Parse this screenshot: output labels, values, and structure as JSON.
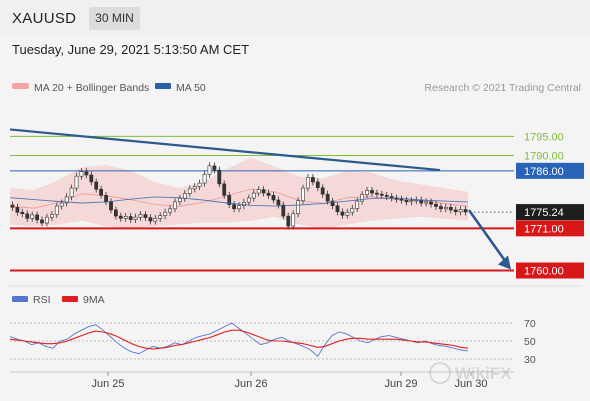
{
  "header": {
    "symbol": "XAUUSD",
    "timeframe": "30 MIN",
    "datetime": "Tuesday, June 29, 2021 5:13:50 AM CET"
  },
  "legend": {
    "ma20_bb_label": "MA 20 + Bollinger Bands",
    "ma50_label": "MA 50",
    "credit": "Research © 2021 Trading Central",
    "colors": {
      "bollinger": "#f5a3a3",
      "ma50": "#2a5fa8"
    }
  },
  "rsi_legend": {
    "rsi_label": "RSI",
    "ma9_label": "9MA",
    "colors": {
      "rsi": "#5577cc",
      "ma9": "#e02020"
    }
  },
  "chart_data": [
    {
      "type": "candlestick",
      "ylim": [
        1757,
        1799
      ],
      "x_tick_labels": [
        "Jun 25",
        "Jun 26",
        "Jun 29",
        "Jun 30"
      ],
      "current_price": {
        "value": 1775.24,
        "label": "1775.24"
      },
      "levels": [
        {
          "value": 1795.0,
          "label": "1795.00",
          "kind": "resistance",
          "color": "#7bbf3a"
        },
        {
          "value": 1790.0,
          "label": "1790.00",
          "kind": "resistance",
          "color": "#7bbf3a"
        },
        {
          "value": 1786.0,
          "label": "1786.00",
          "kind": "pivot",
          "color": "#2a62b8"
        },
        {
          "value": 1771.0,
          "label": "1771.00",
          "kind": "support",
          "color": "#d81818"
        },
        {
          "value": 1760.0,
          "label": "1760.00",
          "kind": "support",
          "color": "#d81818"
        }
      ],
      "closes": [
        1776.5,
        1775.2,
        1774.8,
        1773.6,
        1774.5,
        1773.2,
        1772.4,
        1773.9,
        1774.6,
        1776.8,
        1777.6,
        1779.2,
        1781.5,
        1784.6,
        1785.8,
        1784.9,
        1783.1,
        1781.2,
        1779.6,
        1777.9,
        1775.8,
        1774.2,
        1773.6,
        1774.1,
        1773.3,
        1773.9,
        1774.6,
        1773.8,
        1772.9,
        1773.6,
        1774.3,
        1775.2,
        1776.1,
        1777.9,
        1778.8,
        1780.1,
        1781.3,
        1781.9,
        1782.8,
        1785.1,
        1787.3,
        1786.2,
        1782.6,
        1779.6,
        1777.2,
        1776.1,
        1776.9,
        1777.8,
        1778.9,
        1780.2,
        1781.1,
        1780.2,
        1779.6,
        1778.4,
        1777.1,
        1774.2,
        1771.6,
        1774.8,
        1778.2,
        1781.5,
        1784.3,
        1783.1,
        1781.6,
        1779.9,
        1778.1,
        1776.9,
        1775.3,
        1774.4,
        1775.2,
        1776.2,
        1778.1,
        1779.8,
        1780.9,
        1780.2,
        1779.9,
        1779.6,
        1779.3,
        1778.9,
        1778.6,
        1778.3,
        1777.9,
        1778.2,
        1778.4,
        1777.6,
        1777.9,
        1777.3,
        1776.7,
        1776.1,
        1776.5,
        1775.8,
        1775.3,
        1775.9,
        1775.24
      ],
      "ma50_points": [
        1779.0,
        1778.5,
        1778.0,
        1777.6,
        1777.9,
        1778.6,
        1779.2,
        1779.0,
        1778.4,
        1777.6,
        1777.0,
        1776.8,
        1777.1,
        1777.5,
        1778.1,
        1778.8,
        1778.9,
        1778.4,
        1778.1,
        1777.9
      ],
      "bb_upper": [
        1781.5,
        1781.0,
        1783.5,
        1787.0,
        1787.5,
        1786.0,
        1783.0,
        1781.5,
        1783.0,
        1786.5,
        1789.5,
        1787.0,
        1784.5,
        1784.0,
        1786.0,
        1785.5,
        1783.5,
        1782.5,
        1781.5,
        1780.5
      ],
      "bb_lower": [
        1772.0,
        1771.5,
        1772.0,
        1773.0,
        1771.5,
        1771.0,
        1771.5,
        1772.0,
        1772.5,
        1772.5,
        1773.0,
        1774.0,
        1772.0,
        1771.0,
        1772.0,
        1773.0,
        1773.5,
        1774.0,
        1773.5,
        1773.0
      ],
      "trendline": {
        "from": 1796.8,
        "to": 1786.2
      },
      "projection": {
        "from": 1775.24,
        "to": 1760.0
      }
    },
    {
      "type": "line",
      "name": "RSI",
      "ylim": [
        20,
        80
      ],
      "y_tick_labels": [
        "70",
        "50",
        "30"
      ],
      "y_ticks": [
        70,
        50,
        30
      ],
      "series": [
        {
          "name": "RSI",
          "values": [
            55,
            52,
            50,
            46,
            48,
            44,
            42,
            50,
            52,
            58,
            62,
            66,
            68,
            62,
            55,
            48,
            42,
            38,
            36,
            40,
            44,
            42,
            44,
            48,
            46,
            50,
            54,
            56,
            58,
            62,
            66,
            70,
            64,
            58,
            52,
            46,
            48,
            52,
            54,
            50,
            47,
            44,
            40,
            33,
            46,
            56,
            60,
            58,
            54,
            50,
            48,
            52,
            55,
            56,
            54,
            52,
            50,
            48,
            50,
            47,
            45,
            44,
            42,
            40,
            39
          ]
        },
        {
          "name": "9MA",
          "values": [
            52,
            51,
            50,
            49,
            48,
            47,
            47,
            48,
            50,
            53,
            56,
            59,
            61,
            60,
            58,
            55,
            51,
            47,
            44,
            42,
            41,
            42,
            43,
            45,
            46,
            48,
            50,
            52,
            54,
            57,
            60,
            62,
            62,
            60,
            57,
            54,
            51,
            50,
            50,
            49,
            48,
            47,
            45,
            43,
            44,
            47,
            50,
            52,
            53,
            53,
            52,
            52,
            52,
            52,
            52,
            51,
            50,
            49,
            49,
            48,
            47,
            46,
            45,
            43,
            42
          ]
        }
      ]
    }
  ],
  "watermark": "WikiFX"
}
